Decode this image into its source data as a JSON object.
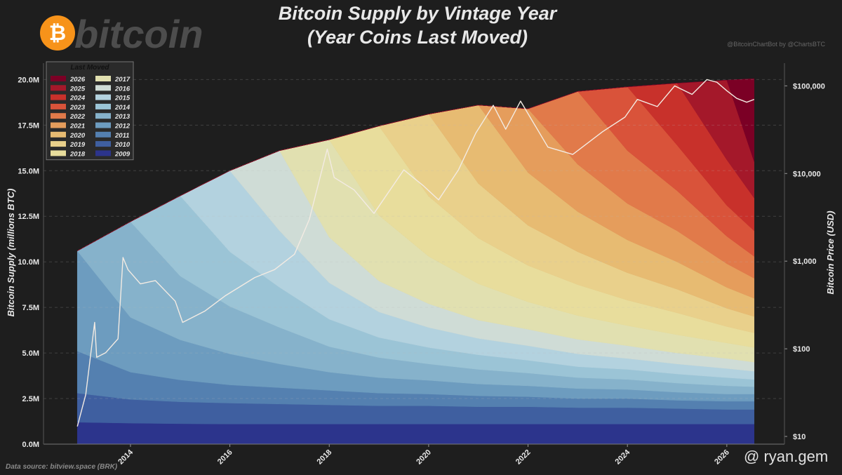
{
  "logo": "bitcoin",
  "watermark": "@ ryan.gem",
  "chart_data": {
    "type": "area",
    "stacked": true,
    "title": "Bitcoin Supply by Vintage Year",
    "subtitle": "(Year Coins Last Moved)",
    "credit": "@BitcoinChartBot by @ChartsBTC",
    "source": "Data source: bitview.space (BRK)",
    "y_label": "Bitcoin Supply (millions BTC)",
    "y2_label": "Bitcoin Price (USD)",
    "legend_title": "Last Moved",
    "legend": "upper left",
    "grid": true,
    "xlim": [
      2012.25,
      2027.16
    ],
    "xticks": [
      2014,
      2016,
      2018,
      2020,
      2022,
      2024,
      2026
    ],
    "ylim": [
      0,
      20.9
    ],
    "yticks": [
      {
        "value": 0,
        "label": "0.0M"
      },
      {
        "value": 2.5,
        "label": "2.5M"
      },
      {
        "value": 5,
        "label": "5.0M"
      },
      {
        "value": 7.5,
        "label": "7.5M"
      },
      {
        "value": 10,
        "label": "10.0M"
      },
      {
        "value": 12.5,
        "label": "12.5M"
      },
      {
        "value": 15,
        "label": "15.0M"
      },
      {
        "value": 17.5,
        "label": "17.5M"
      },
      {
        "value": 20,
        "label": "20.0M"
      }
    ],
    "y2lim": [
      8.17,
      181600
    ],
    "y2_log": true,
    "y2ticks": [
      {
        "value": 10,
        "label": "$10"
      },
      {
        "value": 100,
        "label": "$100"
      },
      {
        "value": 1000,
        "label": "$1,000"
      },
      {
        "value": 10000,
        "label": "$10,000"
      },
      {
        "value": 100000,
        "label": "$100,000"
      }
    ],
    "x": [
      2012.93,
      2014,
      2015,
      2016,
      2017,
      2018,
      2019,
      2020,
      2021,
      2022,
      2023,
      2024,
      2025,
      2026,
      2026.55
    ],
    "series": [
      {
        "name": "2009",
        "color": "#2c348c",
        "values": [
          1.2,
          1.15,
          1.12,
          1.1,
          1.1,
          1.1,
          1.1,
          1.1,
          1.1,
          1.1,
          1.1,
          1.1,
          1.1,
          1.1,
          1.1
        ]
      },
      {
        "name": "2010",
        "color": "#3f5fa0",
        "values": [
          1.6,
          1.3,
          1.2,
          1.15,
          1.1,
          1.05,
          1.0,
          1.0,
          0.95,
          0.95,
          0.9,
          0.9,
          0.85,
          0.8,
          0.8
        ]
      },
      {
        "name": "2011",
        "color": "#5480b0",
        "values": [
          2.3,
          1.5,
          1.2,
          1.0,
          0.9,
          0.8,
          0.7,
          0.65,
          0.6,
          0.55,
          0.5,
          0.5,
          0.45,
          0.45,
          0.45
        ]
      },
      {
        "name": "2012",
        "color": "#6d9cbf",
        "values": [
          5.5,
          3.0,
          2.2,
          1.7,
          1.3,
          1.0,
          0.85,
          0.75,
          0.65,
          0.6,
          0.55,
          0.5,
          0.45,
          0.4,
          0.4
        ]
      },
      {
        "name": "2013",
        "color": "#86b2cb",
        "values": [
          0,
          5.25,
          3.5,
          2.6,
          2.0,
          1.4,
          1.1,
          0.9,
          0.8,
          0.7,
          0.6,
          0.55,
          0.5,
          0.45,
          0.4
        ]
      },
      {
        "name": "2014",
        "color": "#9bc4d6",
        "values": [
          0,
          0,
          4.4,
          3.0,
          2.2,
          1.5,
          1.1,
          0.9,
          0.8,
          0.7,
          0.6,
          0.55,
          0.5,
          0.45,
          0.4
        ]
      },
      {
        "name": "2015",
        "color": "#b3d2df",
        "values": [
          0,
          0,
          0,
          4.45,
          3.1,
          2.0,
          1.4,
          1.1,
          0.9,
          0.8,
          0.7,
          0.6,
          0.55,
          0.5,
          0.45
        ]
      },
      {
        "name": "2016",
        "color": "#cfdcd6",
        "values": [
          0,
          0,
          0,
          0,
          4.4,
          2.5,
          1.7,
          1.3,
          1.0,
          0.9,
          0.8,
          0.7,
          0.6,
          0.55,
          0.5
        ]
      },
      {
        "name": "2017",
        "color": "#e1e0b0",
        "values": [
          0,
          0,
          0,
          0,
          0,
          5.35,
          3.6,
          2.6,
          2.0,
          1.5,
          1.3,
          1.1,
          1.0,
          0.85,
          0.8
        ]
      },
      {
        "name": "2018",
        "color": "#e8dd9c",
        "values": [
          0,
          0,
          0,
          0,
          0,
          0,
          4.9,
          3.3,
          2.5,
          2.0,
          1.7,
          1.4,
          1.2,
          0.9,
          0.8
        ]
      },
      {
        "name": "2019",
        "color": "#e9d08b",
        "values": [
          0,
          0,
          0,
          0,
          0,
          0,
          0,
          4.5,
          3.0,
          2.2,
          1.8,
          1.5,
          1.3,
          1.0,
          0.9
        ]
      },
      {
        "name": "2020",
        "color": "#e7bb72",
        "values": [
          0,
          0,
          0,
          0,
          0,
          0,
          0,
          0,
          4.3,
          2.9,
          2.2,
          1.8,
          1.5,
          1.15,
          1.0
        ]
      },
      {
        "name": "2021",
        "color": "#e59d5c",
        "values": [
          0,
          0,
          0,
          0,
          0,
          0,
          0,
          0,
          0,
          3.5,
          2.6,
          2.0,
          1.7,
          1.3,
          1.1
        ]
      },
      {
        "name": "2022",
        "color": "#e17a4a",
        "values": [
          0,
          0,
          0,
          0,
          0,
          0,
          0,
          0,
          0,
          0,
          4.0,
          2.9,
          2.2,
          1.5,
          1.2
        ]
      },
      {
        "name": "2023",
        "color": "#d9533a",
        "values": [
          0,
          0,
          0,
          0,
          0,
          0,
          0,
          0,
          0,
          0,
          0,
          3.5,
          2.5,
          1.7,
          1.4
        ]
      },
      {
        "name": "2024",
        "color": "#c8312b",
        "values": [
          0,
          0,
          0,
          0,
          0,
          0,
          0,
          0,
          0,
          0,
          0,
          0,
          3.4,
          2.5,
          1.8
        ]
      },
      {
        "name": "2025",
        "color": "#a4182a",
        "values": [
          0,
          0,
          0,
          0,
          0,
          0,
          0,
          0,
          0,
          0,
          0,
          0,
          0,
          4.37,
          2.0
        ]
      },
      {
        "name": "2026",
        "color": "#7b0025",
        "values": [
          0,
          0,
          0,
          0,
          0,
          0,
          0,
          0,
          0,
          0,
          0,
          0,
          0,
          0,
          4.55
        ]
      },
      {
        "type": "line",
        "axis": "y2",
        "color": "#f3ebe3",
        "x": [
          2012.93,
          2013.1,
          2013.28,
          2013.32,
          2013.5,
          2013.75,
          2013.85,
          2013.95,
          2014.2,
          2014.5,
          2014.9,
          2015.05,
          2015.5,
          2015.9,
          2016.5,
          2016.9,
          2017.3,
          2017.6,
          2017.96,
          2018.1,
          2018.5,
          2018.9,
          2019.5,
          2019.9,
          2020.2,
          2020.6,
          2020.95,
          2021.3,
          2021.55,
          2021.85,
          2022.4,
          2022.9,
          2023.5,
          2023.95,
          2024.2,
          2024.6,
          2024.95,
          2025.3,
          2025.6,
          2025.8,
          2026.0,
          2026.2,
          2026.4,
          2026.55
        ],
        "values": [
          13,
          30,
          200,
          80,
          90,
          130,
          1100,
          800,
          550,
          600,
          350,
          200,
          270,
          400,
          650,
          800,
          1200,
          3000,
          19000,
          9000,
          6500,
          3500,
          11000,
          7200,
          5000,
          11000,
          29000,
          60000,
          32000,
          67000,
          20000,
          16500,
          30000,
          44000,
          70000,
          58000,
          100000,
          80000,
          118000,
          110000,
          88000,
          72000,
          65000,
          70000
        ]
      }
    ]
  }
}
